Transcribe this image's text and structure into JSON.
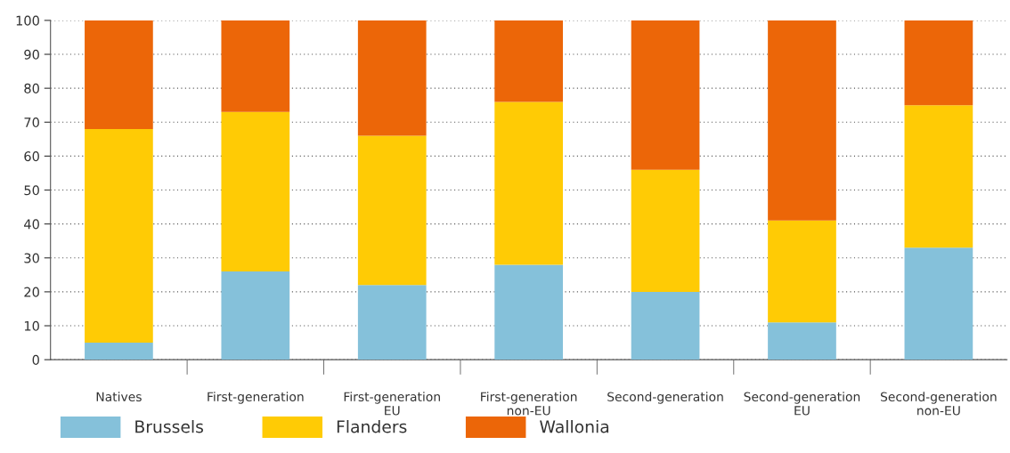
{
  "chart_data": {
    "type": "bar",
    "stacked": true,
    "categories": [
      "Natives",
      "First-generation",
      "First-generation EU",
      "First-generation non-EU",
      "Second-generation",
      "Second-generation EU",
      "Second-generation non-EU"
    ],
    "series": [
      {
        "name": "Brussels",
        "color": "#85c1da",
        "values": [
          5,
          26,
          22,
          28,
          20,
          11,
          33
        ]
      },
      {
        "name": "Flanders",
        "color": "#ffcb05",
        "values": [
          63,
          47,
          44,
          48,
          36,
          30,
          42
        ]
      },
      {
        "name": "Wallonia",
        "color": "#ec6608",
        "values": [
          32,
          27,
          34,
          24,
          44,
          59,
          25
        ]
      }
    ],
    "ylim": [
      0,
      100
    ],
    "yticks": [
      0,
      10,
      20,
      30,
      40,
      50,
      60,
      70,
      80,
      90,
      100
    ],
    "grid": "y",
    "legend": "bottom"
  }
}
